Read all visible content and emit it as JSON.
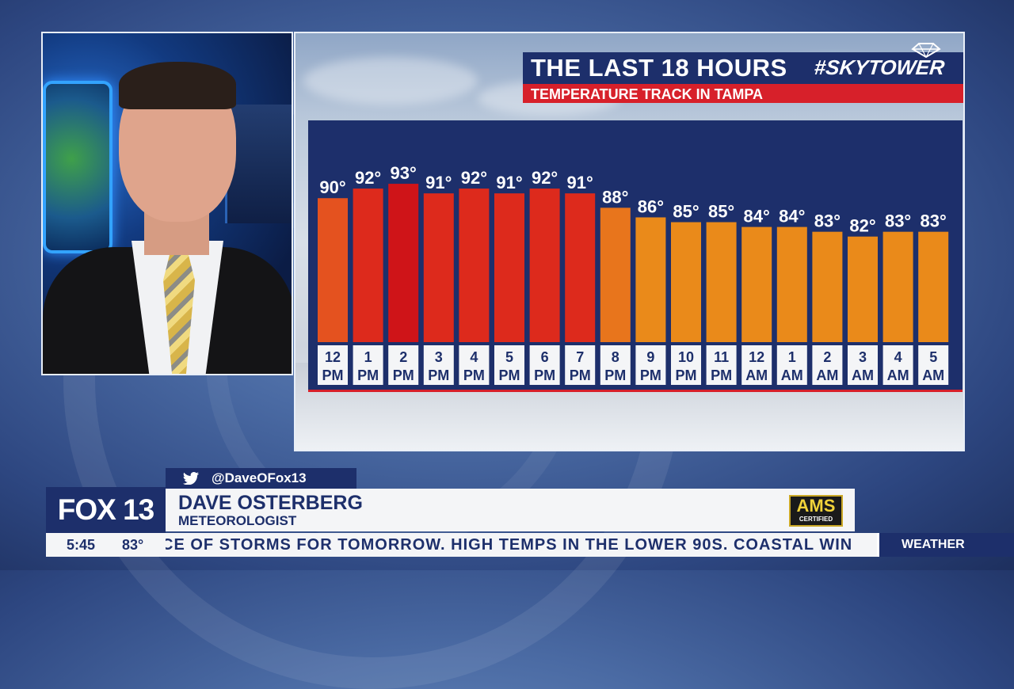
{
  "graphic": {
    "title": "THE LAST 18 HOURS",
    "subtitle": "TEMPERATURE TRACK IN TAMPA",
    "brand": "#SKYTOWER"
  },
  "chart_data": {
    "type": "bar",
    "title": "THE LAST 18 HOURS",
    "subtitle": "TEMPERATURE TRACK IN TAMPA",
    "categories": [
      [
        "12",
        "PM"
      ],
      [
        "1",
        "PM"
      ],
      [
        "2",
        "PM"
      ],
      [
        "3",
        "PM"
      ],
      [
        "4",
        "PM"
      ],
      [
        "5",
        "PM"
      ],
      [
        "6",
        "PM"
      ],
      [
        "7",
        "PM"
      ],
      [
        "8",
        "PM"
      ],
      [
        "9",
        "PM"
      ],
      [
        "10",
        "PM"
      ],
      [
        "11",
        "PM"
      ],
      [
        "12",
        "AM"
      ],
      [
        "1",
        "AM"
      ],
      [
        "2",
        "AM"
      ],
      [
        "3",
        "AM"
      ],
      [
        "4",
        "AM"
      ],
      [
        "5",
        "AM"
      ]
    ],
    "values": [
      90,
      92,
      93,
      91,
      92,
      91,
      92,
      91,
      88,
      86,
      85,
      85,
      84,
      84,
      83,
      82,
      83,
      83
    ],
    "value_labels": [
      "90°",
      "92°",
      "93°",
      "91°",
      "92°",
      "91°",
      "92°",
      "91°",
      "88°",
      "86°",
      "85°",
      "85°",
      "84°",
      "84°",
      "83°",
      "82°",
      "83°",
      "83°"
    ],
    "bar_colors": [
      "#e4521f",
      "#dd2a1c",
      "#cf1418",
      "#dd2a1c",
      "#dd2a1c",
      "#dd2a1c",
      "#dd2a1c",
      "#dd2a1c",
      "#e8751c",
      "#ea8a1a",
      "#ea8a1a",
      "#ea8a1a",
      "#ea8a1a",
      "#ea8a1a",
      "#ea8a1a",
      "#ea8a1a",
      "#ea8a1a",
      "#ea8a1a"
    ],
    "ylim": [
      60,
      94
    ]
  },
  "lower_third": {
    "handle": "@DaveOFox13",
    "station_logo": "FOX 13",
    "name": "DAVE OSTERBERG",
    "role": "METEOROLOGIST",
    "badge_top": "AMS",
    "badge_bottom": "CERTIFIED",
    "time": "5:45",
    "temp": "83°",
    "crawl": "CE OF STORMS FOR TOMORROW. HIGH TEMPS IN THE LOWER 90S. COASTAL WIN",
    "section": "WEATHER"
  },
  "colors": {
    "navy": "#1d2f6b",
    "red": "#d7202a",
    "white": "#ffffff"
  },
  "icons": [
    "twitter-icon",
    "skytower-diamond-icon"
  ]
}
